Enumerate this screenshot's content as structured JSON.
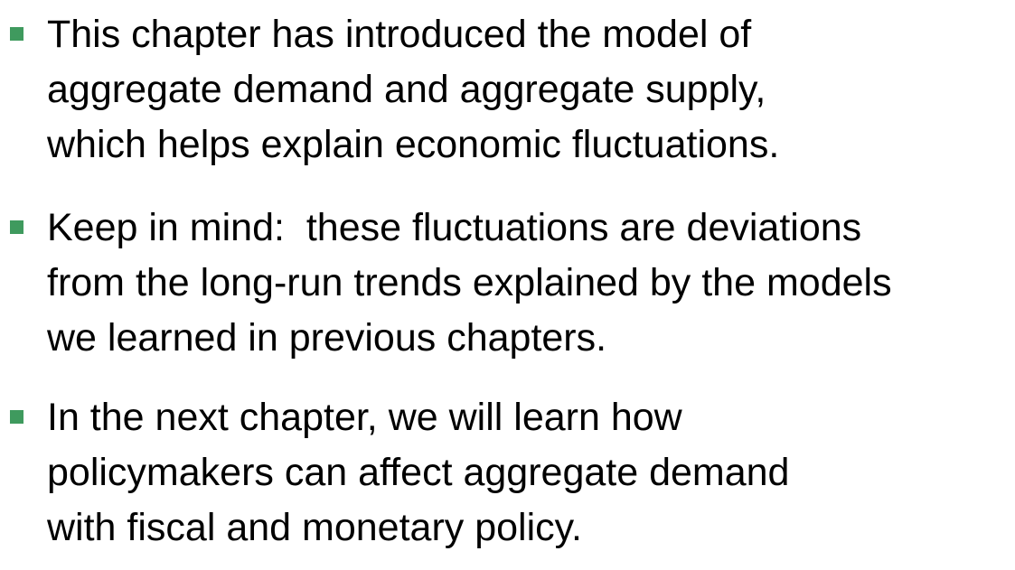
{
  "bullets": [
    {
      "marker_color": "#3f9a5e",
      "lines": [
        "This chapter has introduced the model of",
        "aggregate demand and aggregate supply,",
        "which helps explain economic fluctuations."
      ]
    },
    {
      "marker_color": "#3f9a5e",
      "lines": [
        "Keep in mind:  these fluctuations are deviations",
        "from the long-run trends explained by the models",
        "we learned in previous chapters."
      ]
    },
    {
      "marker_color": "#3f9a5e",
      "lines": [
        "In the next chapter, we will learn how",
        "policymakers can affect aggregate demand",
        "with fiscal and monetary policy."
      ]
    }
  ]
}
